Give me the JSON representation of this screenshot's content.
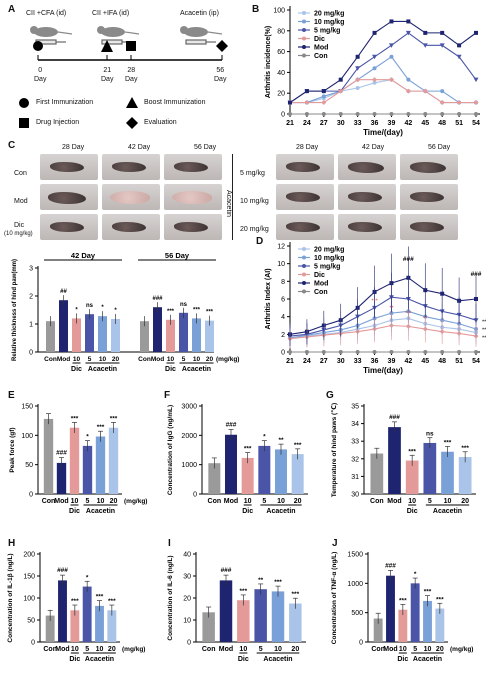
{
  "panels": {
    "A": "A",
    "B": "B",
    "C": "C",
    "D": "D",
    "E": "E",
    "F": "F",
    "G": "G",
    "H": "H",
    "I": "I",
    "J": "J"
  },
  "panel_a": {
    "steps": [
      "CII +CFA (id)",
      "CII +IFA (id)",
      "Acacetin (ip)"
    ],
    "days": [
      "0",
      "21",
      "28",
      "56"
    ],
    "day_word": "Day",
    "legend": [
      "First Immunization",
      "Boost Immunization",
      "Drug Injection",
      "Evaluation"
    ]
  },
  "panel_c": {
    "time_headers": [
      "28 Day",
      "42 Day",
      "56 Day"
    ],
    "left_rows": [
      "Con",
      "Mod",
      "Dic"
    ],
    "dic_dose": "(10 mg/kg)",
    "right_rows": [
      "5 mg/kg",
      "10 mg/kg",
      "20 mg/kg"
    ],
    "acacetin_label": "Acacetin"
  },
  "chart_data": [
    {
      "id": "B",
      "type": "line",
      "xlabel": "Time/(day)",
      "ylabel": "Arthritis incidence(%)",
      "x": [
        21,
        24,
        27,
        30,
        33,
        36,
        39,
        42,
        45,
        48,
        51,
        54
      ],
      "ylim": [
        0,
        100
      ],
      "yticks": [
        0,
        20,
        40,
        60,
        80,
        100
      ],
      "legend": "top-left",
      "series": [
        {
          "name": "20 mg/kg",
          "color": "#a9c4e8",
          "values": [
            11,
            11,
            15,
            22,
            25,
            30,
            33,
            22,
            22,
            11,
            11,
            11
          ]
        },
        {
          "name": "10 mg/kg",
          "color": "#7aa0d8",
          "values": [
            11,
            11,
            17,
            22,
            33,
            44,
            55,
            33,
            22,
            22,
            11,
            11
          ]
        },
        {
          "name": "5 mg/kg",
          "color": "#4a55a8",
          "values": [
            11,
            22,
            22,
            22,
            44,
            55,
            66,
            78,
            66,
            66,
            55,
            33
          ]
        },
        {
          "name": "Dic",
          "color": "#e59a9a",
          "values": [
            11,
            11,
            11,
            22,
            33,
            33,
            33,
            22,
            22,
            11,
            11,
            11
          ]
        },
        {
          "name": "Mod",
          "color": "#1f2470",
          "values": [
            11,
            22,
            22,
            33,
            55,
            78,
            89,
            89,
            78,
            78,
            66,
            78
          ]
        },
        {
          "name": "Con",
          "color": "#888888",
          "values": [
            0,
            0,
            0,
            0,
            0,
            0,
            0,
            0,
            0,
            0,
            0,
            0
          ]
        }
      ]
    },
    {
      "id": "C-bar",
      "type": "bar",
      "ylabel": "Relative thickness of hind paw(mm)",
      "ylim": [
        0,
        3
      ],
      "yticks": [
        0,
        1,
        2,
        3
      ],
      "groups": [
        {
          "label": "42 Day",
          "values": [
            1.1,
            1.85,
            1.2,
            1.35,
            1.28,
            1.18
          ],
          "marks": [
            "",
            "##",
            "*",
            "ns",
            "*",
            "*"
          ]
        },
        {
          "label": "56 Day",
          "values": [
            1.1,
            1.6,
            1.15,
            1.4,
            1.2,
            1.12
          ],
          "marks": [
            "",
            "###",
            "***",
            "ns",
            "***",
            "***"
          ]
        }
      ],
      "categories": [
        "Con",
        "Mod",
        "10",
        "5",
        "10",
        "20"
      ],
      "group_labels": [
        "Dic",
        "Acacetin"
      ],
      "unit": "(mg/kg)"
    },
    {
      "id": "D",
      "type": "line",
      "xlabel": "Time/(day)",
      "ylabel": "Arthritis Index (AI)",
      "x": [
        21,
        24,
        27,
        30,
        33,
        36,
        39,
        42,
        45,
        48,
        51,
        54
      ],
      "ylim": [
        0,
        12
      ],
      "yticks": [
        0,
        2,
        4,
        6,
        8,
        10,
        12
      ],
      "legend": "top-left",
      "annotations": [
        "###",
        "###",
        "***",
        "**",
        "***",
        "**",
        "***"
      ],
      "series": [
        {
          "name": "20 mg/kg",
          "color": "#a9c4e8",
          "values": [
            1.6,
            1.8,
            2.0,
            2.2,
            2.6,
            3.0,
            3.6,
            3.8,
            3.2,
            2.8,
            2.6,
            2.2
          ]
        },
        {
          "name": "10 mg/kg",
          "color": "#7aa0d8",
          "values": [
            1.6,
            1.9,
            2.2,
            2.5,
            3.0,
            3.8,
            4.4,
            4.6,
            4.0,
            3.6,
            3.2,
            2.6
          ]
        },
        {
          "name": "5 mg/kg",
          "color": "#4a55a8",
          "values": [
            1.8,
            2.0,
            2.5,
            3.0,
            4.0,
            5.0,
            6.2,
            6.0,
            5.2,
            4.6,
            4.2,
            3.6
          ]
        },
        {
          "name": "Dic",
          "color": "#e59a9a",
          "values": [
            1.5,
            1.7,
            1.9,
            2.1,
            2.3,
            2.6,
            3.0,
            2.9,
            2.6,
            2.3,
            2.1,
            1.8
          ]
        },
        {
          "name": "Mod",
          "color": "#1f2470",
          "values": [
            2.0,
            2.3,
            3.0,
            3.6,
            5.0,
            6.8,
            7.8,
            8.4,
            7.0,
            6.6,
            5.8,
            6.0
          ]
        },
        {
          "name": "Con",
          "color": "#888888",
          "values": [
            0,
            0,
            0,
            0,
            0,
            0,
            0,
            0,
            0,
            0,
            0,
            0
          ]
        }
      ]
    },
    {
      "id": "E",
      "type": "bar",
      "ylabel": "Peak force (gf)",
      "ylim": [
        0,
        150
      ],
      "yticks": [
        0,
        50,
        100,
        150
      ],
      "categories": [
        "Con",
        "Mod",
        "10",
        "5",
        "10",
        "20"
      ],
      "values": [
        128,
        53,
        113,
        82,
        98,
        113
      ],
      "marks": [
        "",
        "###",
        "***",
        "*",
        "***",
        "***"
      ],
      "group_labels": [
        "Dic",
        "Acacetin"
      ],
      "unit": "(mg/kg)"
    },
    {
      "id": "F",
      "type": "bar",
      "ylabel": "Concentration of IgG (ng/mL)",
      "ylim": [
        0,
        3000
      ],
      "yticks": [
        0,
        1000,
        2000,
        3000
      ],
      "categories": [
        "Con",
        "Mod",
        "10",
        "5",
        "10",
        "20"
      ],
      "values": [
        1050,
        2020,
        1230,
        1640,
        1520,
        1360
      ],
      "marks": [
        "",
        "###",
        "***",
        "*",
        "**",
        "***"
      ],
      "group_labels": [
        "Dic",
        "Acacetin"
      ]
    },
    {
      "id": "G",
      "type": "bar",
      "ylabel": "Temperature of hind paws (℃)",
      "ylim": [
        30,
        35
      ],
      "yticks": [
        30,
        31,
        32,
        33,
        34,
        35
      ],
      "categories": [
        "Con",
        "Mod",
        "10",
        "5",
        "10",
        "20"
      ],
      "values": [
        32.3,
        33.8,
        31.9,
        32.9,
        32.4,
        32.1
      ],
      "marks": [
        "",
        "###",
        "***",
        "ns",
        "***",
        "***"
      ],
      "group_labels": [
        "Dic",
        "Acacetin"
      ]
    },
    {
      "id": "H",
      "type": "bar",
      "ylabel": "Concentration of IL-1β (ng/L)",
      "ylim": [
        0,
        200
      ],
      "yticks": [
        0,
        50,
        100,
        150,
        200
      ],
      "categories": [
        "Con",
        "Mod",
        "10",
        "5",
        "10",
        "20"
      ],
      "values": [
        60,
        140,
        72,
        126,
        82,
        72
      ],
      "marks": [
        "",
        "###",
        "***",
        "*",
        "***",
        "***"
      ],
      "group_labels": [
        "Dic",
        "Acacetin"
      ],
      "unit": "(mg/kg)"
    },
    {
      "id": "I",
      "type": "bar",
      "ylabel": "Concentration of IL-6 (ng/L)",
      "ylim": [
        0,
        40
      ],
      "yticks": [
        0,
        10,
        20,
        30,
        40
      ],
      "categories": [
        "Con",
        "Mod",
        "10",
        "5",
        "10",
        "20"
      ],
      "values": [
        13.5,
        28,
        19,
        24,
        23,
        17.5
      ],
      "marks": [
        "",
        "###",
        "***",
        "**",
        "***",
        "***"
      ],
      "group_labels": [
        "Dic",
        "Acacetin"
      ]
    },
    {
      "id": "J",
      "type": "bar",
      "ylabel": "Concentration of TNF-α (ng/L)",
      "ylim": [
        0,
        1500
      ],
      "yticks": [
        0,
        500,
        1000,
        1500
      ],
      "categories": [
        "Con",
        "Mod",
        "10",
        "5",
        "10",
        "20"
      ],
      "values": [
        400,
        1130,
        550,
        1000,
        700,
        570
      ],
      "marks": [
        "",
        "###",
        "***",
        "*",
        "***",
        "***"
      ],
      "group_labels": [
        "Dic",
        "Acacetin"
      ],
      "unit": "(mg/kg)"
    }
  ],
  "bar_colors": [
    "#9a9a9a",
    "#1f2470",
    "#e59a9a",
    "#4a55a8",
    "#7aa0d8",
    "#a9c4e8"
  ]
}
